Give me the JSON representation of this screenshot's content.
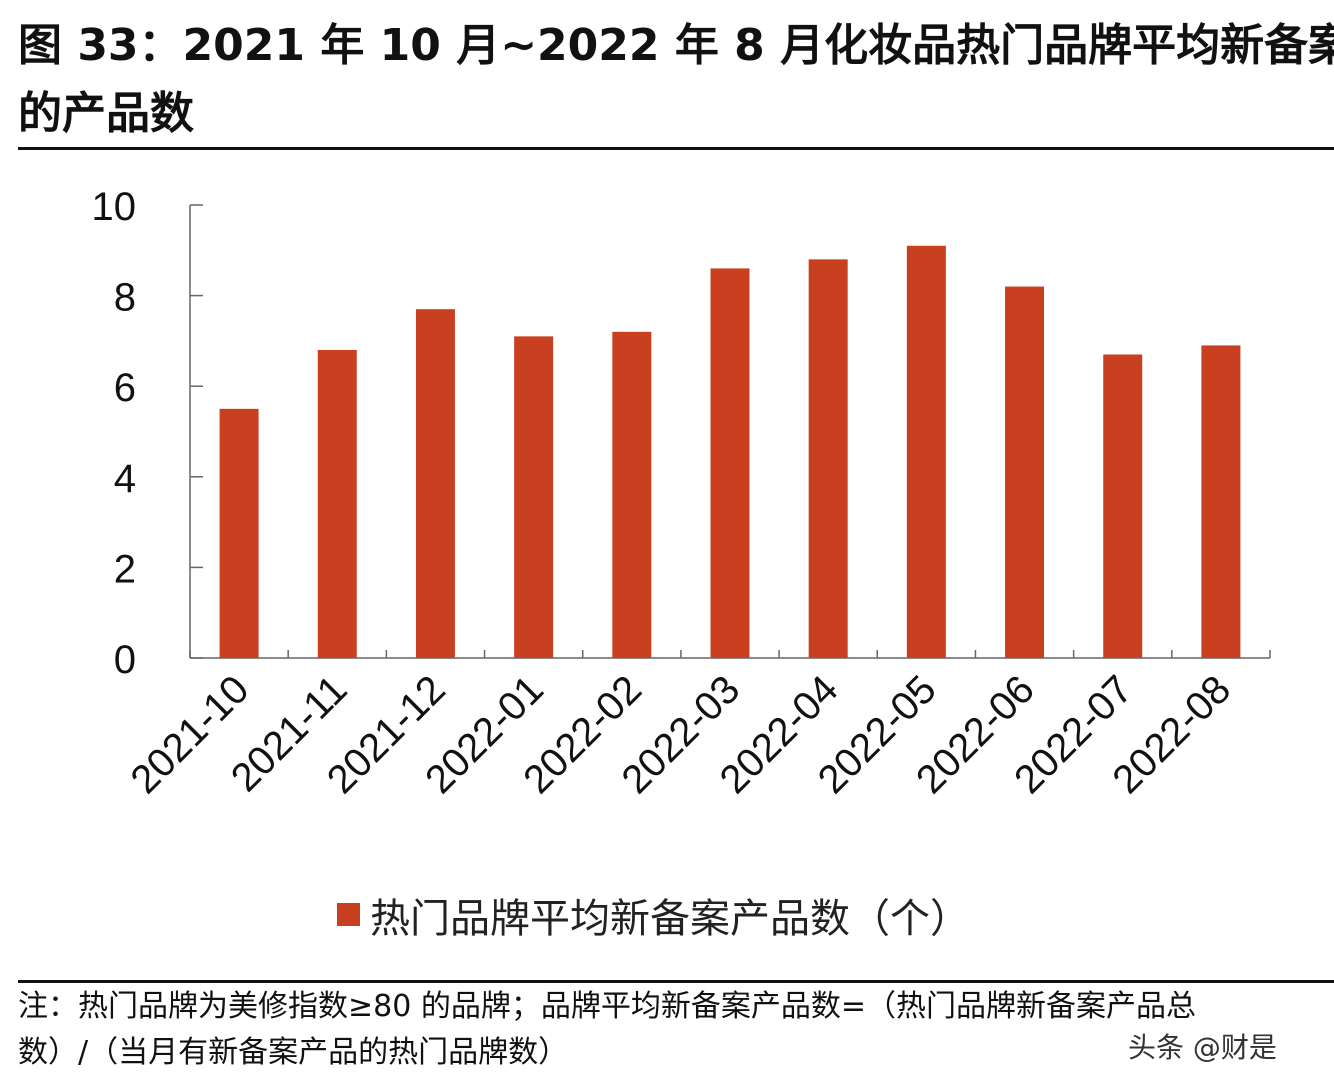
{
  "title_line1": "图 33：2021 年 10 月~2022 年 8 月化妆品热门品牌平均新备案",
  "title_line2": "的产品数",
  "chart_data": {
    "type": "bar",
    "categories": [
      "2021-10",
      "2021-11",
      "2021-12",
      "2022-01",
      "2022-02",
      "2022-03",
      "2022-04",
      "2022-05",
      "2022-06",
      "2022-07",
      "2022-08"
    ],
    "series": [
      {
        "name": "热门品牌平均新备案产品数（个）",
        "values": [
          5.5,
          6.8,
          7.7,
          7.1,
          7.2,
          8.6,
          8.8,
          9.1,
          8.2,
          6.7,
          6.9
        ],
        "color": "#C8401F"
      }
    ],
    "ylim": [
      0,
      10
    ],
    "yticks": [
      0,
      2,
      4,
      6,
      8,
      10
    ],
    "grid": false,
    "legend": "bottom"
  },
  "notes": {
    "line1": "注：热门品牌为美修指数≥80 的品牌；品牌平均新备案产品数=（热门品牌新备案产品总",
    "line2": "数）/（当月有新备案产品的热门品牌数）"
  },
  "watermark": "头条 @财是"
}
